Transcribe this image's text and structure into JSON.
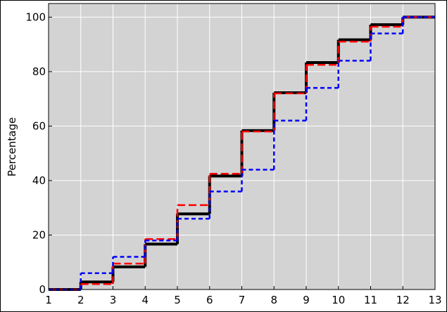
{
  "chart_data": {
    "type": "step",
    "y_label": "Percentage",
    "x": [
      1,
      2,
      3,
      4,
      5,
      6,
      7,
      8,
      9,
      10,
      11,
      12
    ],
    "series": [
      {
        "color": "#000000",
        "dash": "solid",
        "values": [
          0,
          2.78,
          8.33,
          16.67,
          27.78,
          41.67,
          58.33,
          72.22,
          83.33,
          91.67,
          97.22,
          100
        ]
      },
      {
        "color": "#ff0000",
        "dash": "long",
        "values": [
          0,
          2,
          9.5,
          18.5,
          31,
          42.5,
          58,
          72,
          82.5,
          91,
          96.5,
          100
        ]
      },
      {
        "color": "#0000ff",
        "dash": "short",
        "values": [
          0,
          6,
          12,
          18,
          26,
          36,
          44,
          62,
          74,
          84,
          94,
          100
        ]
      }
    ],
    "xlim": [
      1,
      13
    ],
    "xticks": [
      1,
      2,
      3,
      4,
      5,
      6,
      7,
      8,
      9,
      10,
      11,
      12,
      13
    ],
    "ylim": [
      0,
      105
    ],
    "yticks": [
      0,
      20,
      40,
      60,
      80,
      100
    ],
    "grid": true,
    "background": "#d3d3d3"
  }
}
